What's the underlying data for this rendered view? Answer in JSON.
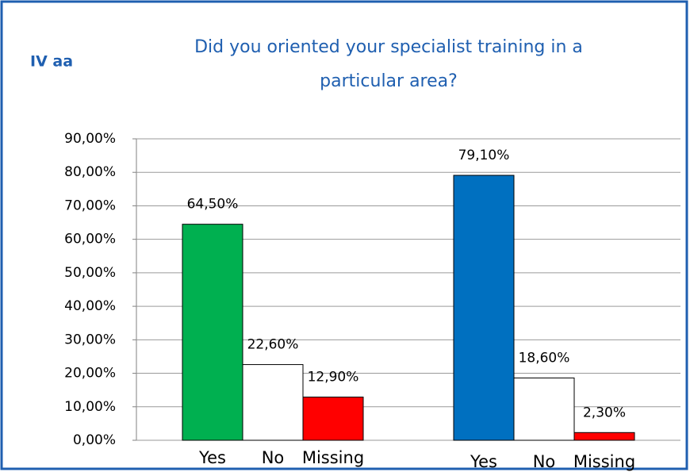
{
  "chart_data": {
    "type": "bar",
    "label": "IV aa",
    "title": [
      "Did you oriented your specialist training in a",
      "particular area?"
    ],
    "groups": [
      {
        "categories": [
          "Yes",
          "No",
          "Missing"
        ],
        "values": [
          64.5,
          22.6,
          12.9
        ],
        "value_labels": [
          "64,50%",
          "22,60%",
          "12,90%"
        ],
        "colors": [
          "#00b050",
          "#ffffff",
          "#ff0000"
        ]
      },
      {
        "categories": [
          "Yes",
          "No",
          "Missing"
        ],
        "values": [
          79.1,
          18.6,
          2.3
        ],
        "value_labels": [
          "79,10%",
          "18,60%",
          "2,30%"
        ],
        "colors": [
          "#0070c0",
          "#ffffff",
          "#ff0000"
        ]
      }
    ],
    "ylim": [
      0,
      90
    ],
    "yticks": [
      {
        "value": 0,
        "label": "0,00%"
      },
      {
        "value": 10,
        "label": "10,00%"
      },
      {
        "value": 20,
        "label": "20,00%"
      },
      {
        "value": 30,
        "label": "30,00%"
      },
      {
        "value": 40,
        "label": "40,00%"
      },
      {
        "value": 50,
        "label": "50,00%"
      },
      {
        "value": 60,
        "label": "60,00%"
      },
      {
        "value": 70,
        "label": "70,00%"
      },
      {
        "value": 80,
        "label": "80,00%"
      },
      {
        "value": 90,
        "label": "90,00%"
      }
    ],
    "grid": true
  }
}
